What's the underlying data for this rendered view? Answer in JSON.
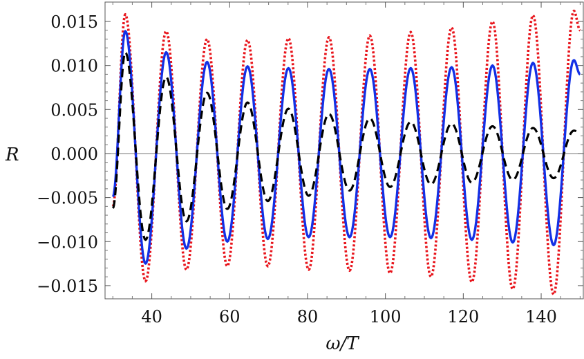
{
  "chart_data": {
    "type": "line",
    "xlabel": "ω/T",
    "ylabel": "R",
    "xlim": [
      28,
      151
    ],
    "ylim": [
      -0.0165,
      0.0172
    ],
    "x_ticks": [
      40,
      60,
      80,
      100,
      120,
      140
    ],
    "x_tick_labels": [
      "40",
      "60",
      "80",
      "100",
      "120",
      "140"
    ],
    "y_ticks": [
      -0.015,
      -0.01,
      -0.005,
      0,
      0.005,
      0.01,
      0.015
    ],
    "y_tick_labels": [
      "−0.015",
      "−0.010",
      "−0.005",
      "0.000",
      "0.005",
      "0.010",
      "0.015"
    ],
    "grid": false,
    "frame": true,
    "zero_line": true,
    "series": [
      {
        "style": "dotted",
        "color": "#e8141b",
        "points": [
          [
            30,
            -0.006
          ],
          [
            33.2,
            0.0158
          ],
          [
            38.4,
            -0.0145
          ],
          [
            43.7,
            0.0139
          ],
          [
            48.9,
            -0.0132
          ],
          [
            54.2,
            0.013
          ],
          [
            59.4,
            -0.0128
          ],
          [
            64.6,
            0.0129
          ],
          [
            69.8,
            -0.0128
          ],
          [
            75.1,
            0.0131
          ],
          [
            80.3,
            -0.0132
          ],
          [
            85.5,
            0.0132
          ],
          [
            90.8,
            -0.0133
          ],
          [
            96.0,
            0.0134
          ],
          [
            101.2,
            -0.0136
          ],
          [
            106.5,
            0.0138
          ],
          [
            111.7,
            -0.014
          ],
          [
            117.0,
            0.0143
          ],
          [
            122.2,
            -0.0146
          ],
          [
            127.5,
            0.015
          ],
          [
            132.7,
            -0.0154
          ],
          [
            137.9,
            0.0157
          ],
          [
            143.2,
            -0.016
          ],
          [
            148.4,
            0.0162
          ],
          [
            150,
            0.014
          ]
        ]
      },
      {
        "style": "solid",
        "color": "#1230e6",
        "points": [
          [
            30,
            -0.0049
          ],
          [
            33.2,
            0.0139
          ],
          [
            38.4,
            -0.0125
          ],
          [
            43.7,
            0.0115
          ],
          [
            48.9,
            -0.0108
          ],
          [
            54.2,
            0.0104
          ],
          [
            59.4,
            -0.01
          ],
          [
            64.6,
            0.0099
          ],
          [
            69.8,
            -0.0097
          ],
          [
            75.1,
            0.0097
          ],
          [
            80.3,
            -0.0095
          ],
          [
            85.5,
            0.0096
          ],
          [
            90.8,
            -0.0095
          ],
          [
            96.0,
            0.0096
          ],
          [
            101.2,
            -0.0095
          ],
          [
            106.5,
            0.0097
          ],
          [
            111.7,
            -0.0096
          ],
          [
            117.0,
            0.0098
          ],
          [
            122.2,
            -0.0098
          ],
          [
            127.5,
            0.01
          ],
          [
            132.7,
            -0.0101
          ],
          [
            137.9,
            0.0103
          ],
          [
            143.2,
            -0.0104
          ],
          [
            148.4,
            0.0106
          ],
          [
            150,
            0.009
          ]
        ]
      },
      {
        "style": "dashed",
        "color": "#000000",
        "points": [
          [
            30,
            -0.0062
          ],
          [
            33.2,
            0.0115
          ],
          [
            38.4,
            -0.0098
          ],
          [
            43.7,
            0.0087
          ],
          [
            48.9,
            -0.0077
          ],
          [
            54.2,
            0.0069
          ],
          [
            59.4,
            -0.0063
          ],
          [
            64.6,
            0.0058
          ],
          [
            69.8,
            -0.0054
          ],
          [
            75.1,
            0.0051
          ],
          [
            80.3,
            -0.0048
          ],
          [
            85.5,
            0.0045
          ],
          [
            90.8,
            -0.0042
          ],
          [
            96.0,
            0.004
          ],
          [
            101.2,
            -0.0038
          ],
          [
            106.5,
            0.0036
          ],
          [
            111.7,
            -0.0035
          ],
          [
            117.0,
            0.0034
          ],
          [
            122.2,
            -0.0033
          ],
          [
            127.5,
            0.0031
          ],
          [
            132.7,
            -0.003
          ],
          [
            137.9,
            0.0029
          ],
          [
            143.2,
            -0.0028
          ],
          [
            148.4,
            0.0026
          ],
          [
            150,
            0.0024
          ]
        ]
      }
    ]
  }
}
